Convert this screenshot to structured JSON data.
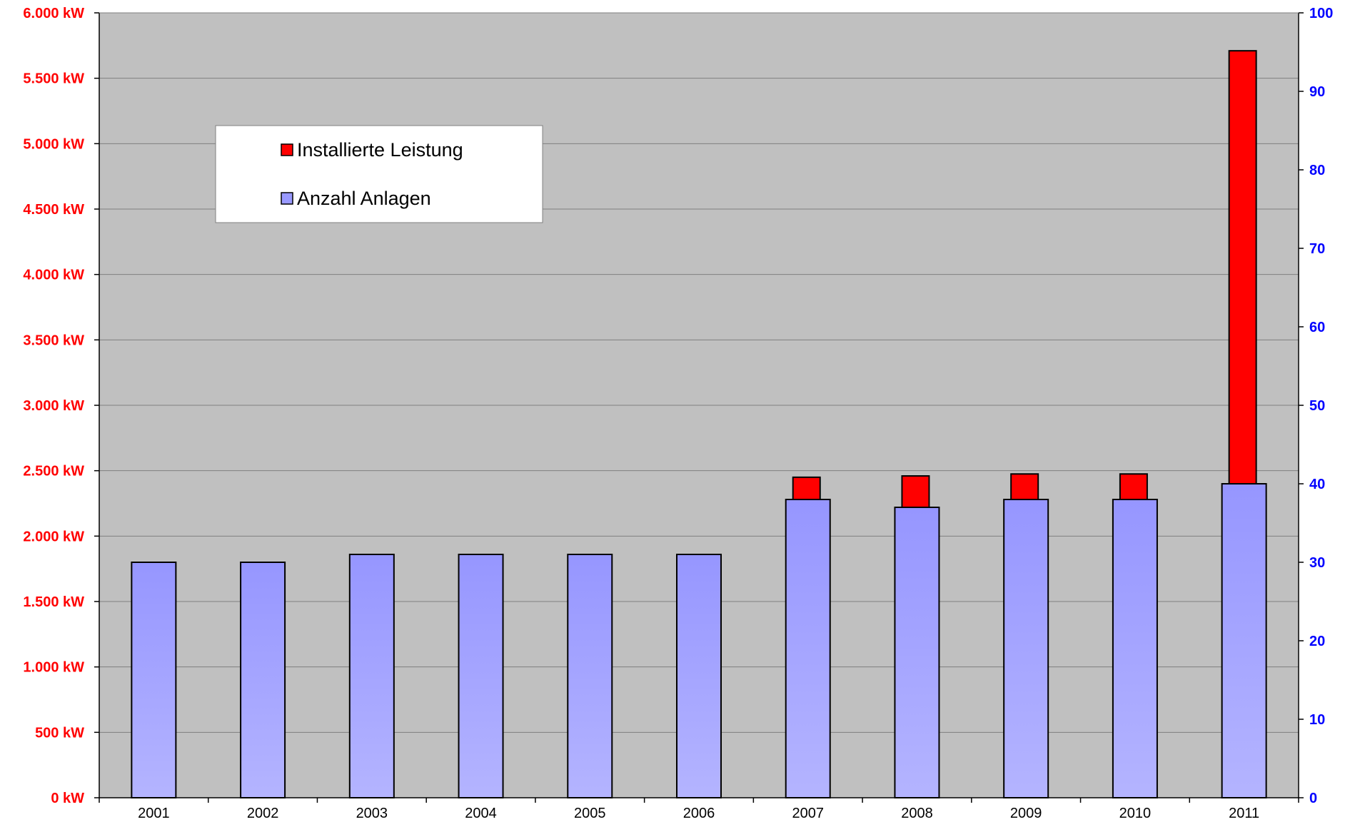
{
  "chart_data": {
    "type": "bar",
    "categories": [
      "2001",
      "2002",
      "2003",
      "2004",
      "2005",
      "2006",
      "2007",
      "2008",
      "2009",
      "2010",
      "2011"
    ],
    "series": [
      {
        "name": "Installierte Leistung",
        "axis": "left",
        "color": "#ff0000",
        "values": [
          0,
          0,
          0,
          0,
          0,
          0,
          2450,
          2460,
          2475,
          2475,
          5710
        ]
      },
      {
        "name": "Anzahl Anlagen",
        "axis": "right",
        "color": "#9999ff",
        "values": [
          30,
          30,
          31,
          31,
          31,
          31,
          38,
          37,
          38,
          38,
          40
        ]
      }
    ],
    "y_left": {
      "range": [
        0,
        6000
      ],
      "tick_labels": [
        "0 kW",
        "500 kW",
        "1.000 kW",
        "1.500 kW",
        "2.000 kW",
        "2.500 kW",
        "3.000 kW",
        "3.500 kW",
        "4.000 kW",
        "4.500 kW",
        "5.000 kW",
        "5.500 kW",
        "6.000 kW"
      ],
      "label_color": "#ff0000"
    },
    "y_right": {
      "range": [
        0,
        100
      ],
      "tick_labels": [
        "0",
        "10",
        "20",
        "30",
        "40",
        "50",
        "60",
        "70",
        "80",
        "90",
        "100"
      ],
      "label_color": "#0000ff"
    },
    "plot_background": "#c0c0c0",
    "grid": true,
    "legend": {
      "placement": "top-left",
      "entries": [
        "Installierte Leistung",
        "Anzahl Anlagen"
      ]
    }
  }
}
